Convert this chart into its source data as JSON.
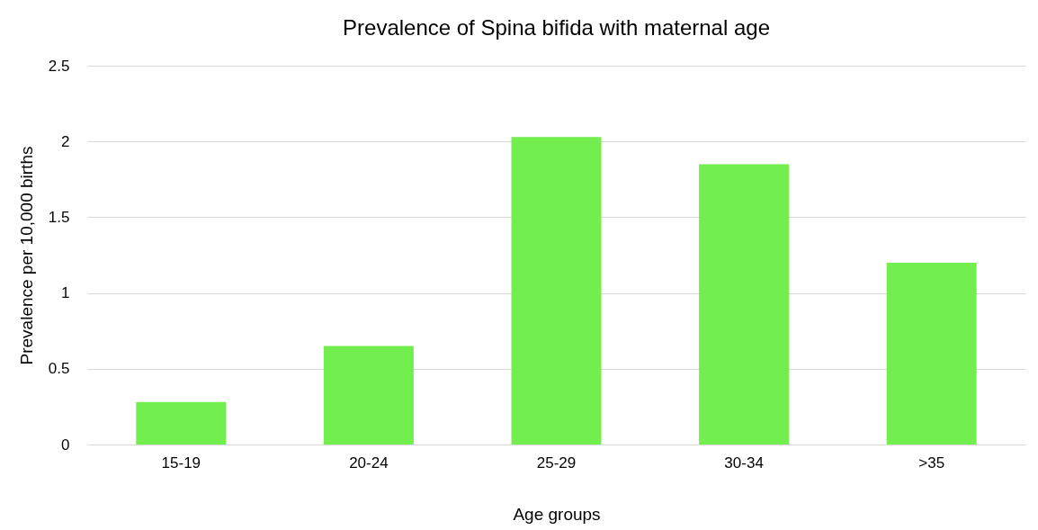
{
  "chart_data": {
    "type": "bar",
    "title": "Prevalence of Spina bifida with maternal age",
    "xlabel": "Age groups",
    "ylabel": "Prevalence per 10,000 births",
    "categories": [
      "15-19",
      "20-24",
      "25-29",
      "30-34",
      ">35"
    ],
    "values": [
      0.28,
      0.65,
      2.03,
      1.85,
      1.2
    ],
    "color": "#72ee4f",
    "ylim": [
      0,
      2.5
    ],
    "yticks": [
      0,
      0.5,
      1,
      1.5,
      2,
      2.5
    ],
    "grid": "y"
  }
}
